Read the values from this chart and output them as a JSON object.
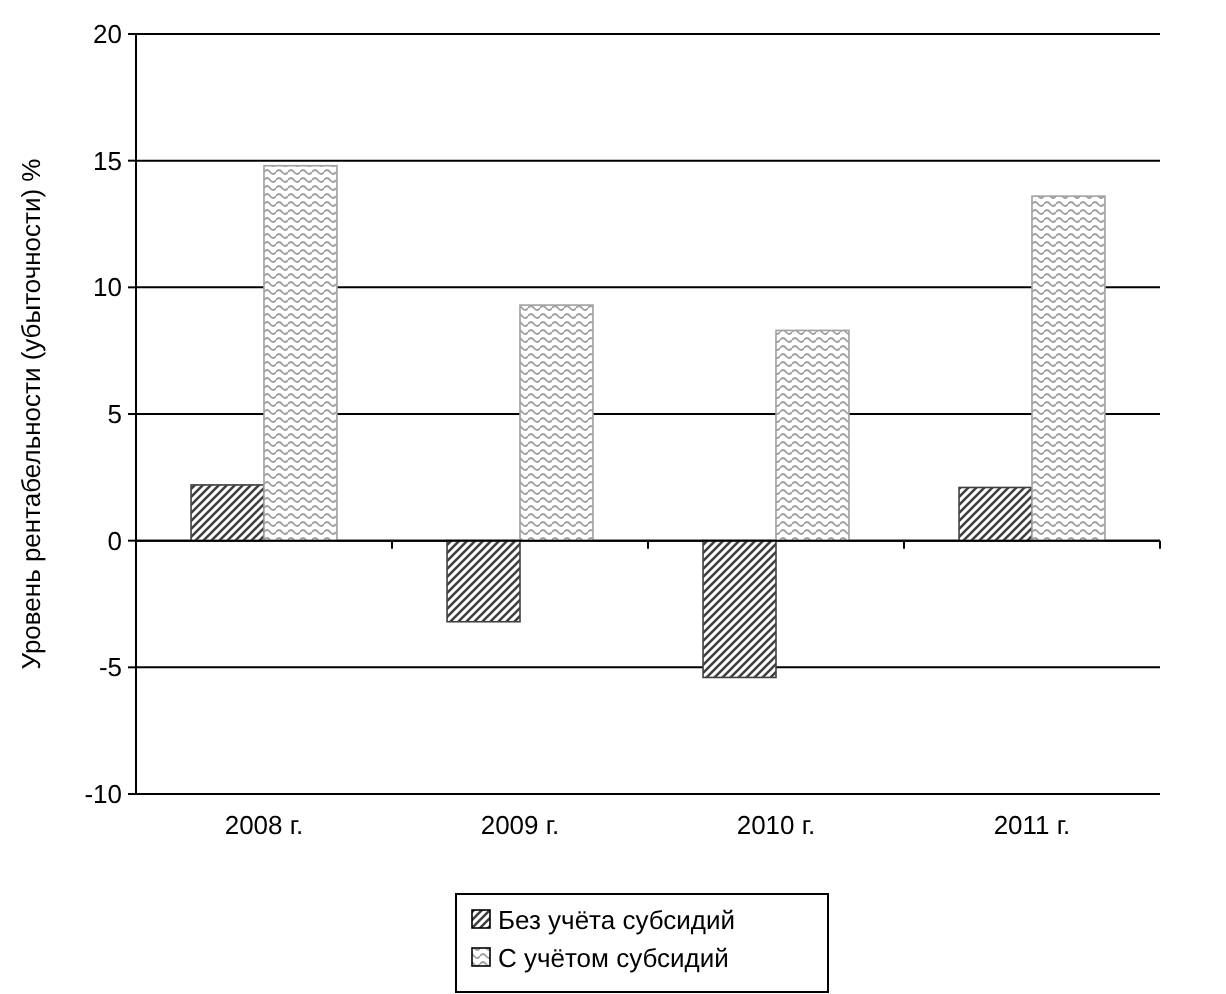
{
  "chart_data": {
    "type": "bar",
    "ylabel": "Уровень рентабельности (убыточности) %",
    "categories": [
      "2008 г.",
      "2009 г.",
      "2010 г.",
      "2011 г."
    ],
    "series": [
      {
        "name": "Без учёта субсидий",
        "color": "#404040",
        "values": [
          2.2,
          -3.2,
          -5.4,
          2.1
        ]
      },
      {
        "name": "С учётом субсидий",
        "color": "#a0a0a0",
        "values": [
          14.8,
          9.3,
          8.3,
          13.6
        ]
      }
    ],
    "ylim": [
      -10,
      20
    ],
    "yticks": [
      -10,
      -5,
      0,
      5,
      10,
      15,
      20
    ],
    "grid": "y",
    "legend": "bottom"
  }
}
